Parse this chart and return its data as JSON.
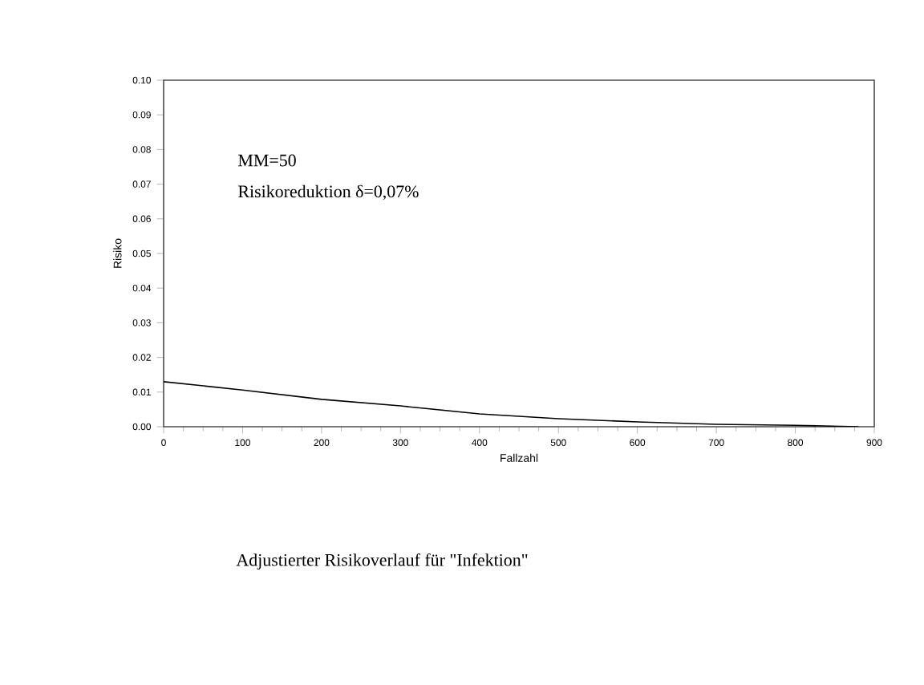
{
  "chart_data": {
    "type": "line",
    "xlabel": "Fallzahl",
    "ylabel": "Risiko",
    "annotations": [
      "MM=50",
      "Risikoreduktion δ=0,07%",
      "Adjustierter Risikoverlauf für \"Infektion\""
    ],
    "x": [
      0,
      100,
      200,
      300,
      400,
      500,
      600,
      700,
      800,
      880
    ],
    "values": [
      0.013,
      0.0106,
      0.0079,
      0.006,
      0.0037,
      0.0023,
      0.0014,
      0.0007,
      0.0004,
      0.0
    ],
    "color": "#000000",
    "xlim": [
      0,
      900
    ],
    "ylim": [
      0,
      0.1
    ],
    "xticks": [
      0,
      100,
      200,
      300,
      400,
      500,
      600,
      700,
      800,
      900
    ],
    "yticks": [
      {
        "value": 0,
        "label": "0.00"
      },
      {
        "value": 0.01,
        "label": "0.01"
      },
      {
        "value": 0.02,
        "label": "0.02"
      },
      {
        "value": 0.03,
        "label": "0.03"
      },
      {
        "value": 0.04,
        "label": "0.04"
      },
      {
        "value": 0.05,
        "label": "0.05"
      },
      {
        "value": 0.06,
        "label": "0.06"
      },
      {
        "value": 0.07,
        "label": "0.07"
      },
      {
        "value": 0.08,
        "label": "0.08"
      },
      {
        "value": 0.09,
        "label": "0.09"
      },
      {
        "value": 0.1,
        "label": "0.10"
      }
    ]
  }
}
